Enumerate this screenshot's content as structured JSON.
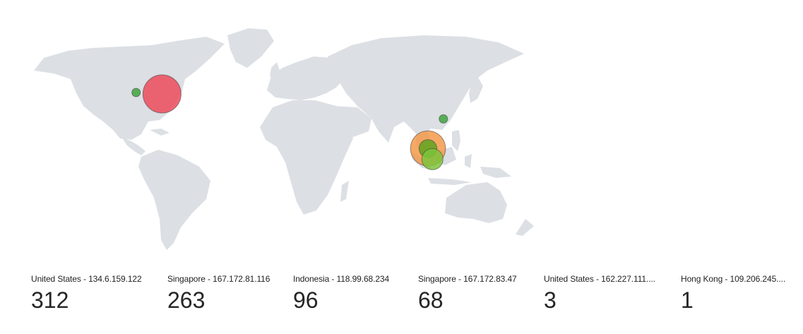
{
  "map": {
    "bubbles": [
      {
        "id": "us-large",
        "lon": -75.5,
        "lat": 40.0,
        "size": 312,
        "color": "#ec4c5c"
      },
      {
        "id": "us-small",
        "lon": -93.0,
        "lat": 41.0,
        "size": 3,
        "color": "#3ea63e"
      },
      {
        "id": "hk",
        "lon": 114.2,
        "lat": 22.3,
        "size": 1,
        "color": "#3ea63e"
      },
      {
        "id": "sg-263",
        "lon": 103.8,
        "lat": 1.4,
        "size": 263,
        "color": "#f39a4a"
      },
      {
        "id": "sg-68",
        "lon": 103.8,
        "lat": 1.3,
        "size": 68,
        "color": "#5fa51e"
      },
      {
        "id": "id-96",
        "lon": 106.8,
        "lat": -6.2,
        "size": 96,
        "color": "#7cc33a"
      }
    ]
  },
  "stats": [
    {
      "label": "United States - 134.6.159.122",
      "value": "312"
    },
    {
      "label": "Singapore - 167.172.81.116",
      "value": "263"
    },
    {
      "label": "Indonesia - 118.99.68.234",
      "value": "96"
    },
    {
      "label": "Singapore - 167.172.83.47",
      "value": "68"
    },
    {
      "label": "United States - 162.227.111....",
      "value": "3"
    },
    {
      "label": "Hong Kong - 109.206.245....",
      "value": "1"
    }
  ]
}
